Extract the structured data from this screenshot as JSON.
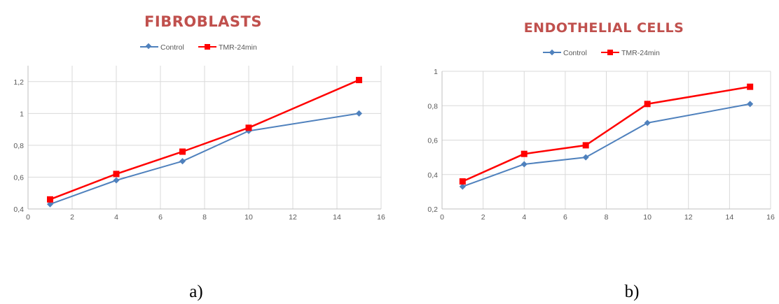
{
  "colors": {
    "control": "#4f81bd",
    "tmr": "#ff0000",
    "title": "#c0504d"
  },
  "chart_data": [
    {
      "type": "line",
      "title": "FIBROBLASTS",
      "caption": "a)",
      "xlabel": "",
      "ylabel": "",
      "xlim": [
        0,
        16
      ],
      "ylim": [
        0.4,
        1.3
      ],
      "xticks": [
        0,
        2,
        4,
        6,
        8,
        10,
        12,
        14,
        16
      ],
      "xtick_labels": [
        "0",
        "2",
        "4",
        "6",
        "8",
        "10",
        "12",
        "14",
        "16"
      ],
      "yticks": [
        0.4,
        0.6,
        0.8,
        1.0,
        1.2
      ],
      "ytick_labels": [
        "0,4",
        "0,6",
        "0,8",
        "1",
        "1,2"
      ],
      "grid": true,
      "legend": "top",
      "series": [
        {
          "name": "Control",
          "marker": "diamond",
          "color": "#4f81bd",
          "x": [
            1,
            4,
            7,
            10,
            15
          ],
          "y": [
            0.43,
            0.58,
            0.7,
            0.89,
            1.0
          ]
        },
        {
          "name": "TMR-24min",
          "marker": "square",
          "color": "#ff0000",
          "x": [
            1,
            4,
            7,
            10,
            15
          ],
          "y": [
            0.46,
            0.62,
            0.76,
            0.91,
            1.21
          ]
        }
      ]
    },
    {
      "type": "line",
      "title": "ENDOTHELIAL CELLS",
      "caption": "b)",
      "xlabel": "",
      "ylabel": "",
      "xlim": [
        0,
        16
      ],
      "ylim": [
        0.2,
        1.0
      ],
      "xticks": [
        0,
        2,
        4,
        6,
        8,
        10,
        12,
        14,
        16
      ],
      "xtick_labels": [
        "0",
        "2",
        "4",
        "6",
        "8",
        "10",
        "12",
        "14",
        "16"
      ],
      "yticks": [
        0.2,
        0.4,
        0.6,
        0.8,
        1.0
      ],
      "ytick_labels": [
        "0,2",
        "0,4",
        "0,6",
        "0,8",
        "1"
      ],
      "grid": true,
      "legend": "top",
      "series": [
        {
          "name": "Control",
          "marker": "diamond",
          "color": "#4f81bd",
          "x": [
            1,
            4,
            7,
            10,
            15
          ],
          "y": [
            0.33,
            0.46,
            0.5,
            0.7,
            0.81
          ]
        },
        {
          "name": "TMR-24min",
          "marker": "square",
          "color": "#ff0000",
          "x": [
            1,
            4,
            7,
            10,
            15
          ],
          "y": [
            0.36,
            0.52,
            0.57,
            0.81,
            0.91
          ]
        }
      ]
    }
  ]
}
